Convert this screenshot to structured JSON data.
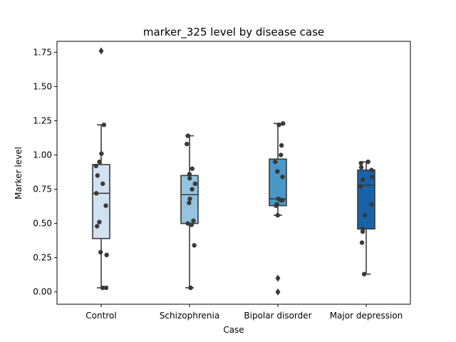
{
  "chart_data": {
    "type": "box",
    "title": "marker_325 level by disease case",
    "xlabel": "Case",
    "ylabel": "Marker level",
    "categories": [
      "Control",
      "Schizophrenia",
      "Bipolar disorder",
      "Major depression"
    ],
    "ylim": [
      -0.09,
      1.83
    ],
    "yticks": [
      0.0,
      0.25,
      0.5,
      0.75,
      1.0,
      1.25,
      1.5,
      1.75
    ],
    "ytick_labels": [
      "0.00",
      "0.25",
      "0.50",
      "0.75",
      "1.00",
      "1.25",
      "1.50",
      "1.75"
    ],
    "colors": {
      "boxes": [
        "#d0e1f2",
        "#94c4df",
        "#4a98c9",
        "#1764ab"
      ],
      "lines": "#3a3a3a",
      "points": "#3a3a3a"
    },
    "boxes": [
      {
        "q1": 0.39,
        "median": 0.72,
        "q3": 0.93,
        "whisker_low": 0.03,
        "whisker_high": 1.22,
        "outliers": [
          1.76
        ]
      },
      {
        "q1": 0.5,
        "median": 0.71,
        "q3": 0.85,
        "whisker_low": 0.03,
        "whisker_high": 1.14,
        "outliers": []
      },
      {
        "q1": 0.63,
        "median": 0.68,
        "q3": 0.97,
        "whisker_low": 0.56,
        "whisker_high": 1.23,
        "outliers": [
          0.1,
          0.0
        ]
      },
      {
        "q1": 0.46,
        "median": 0.78,
        "q3": 0.89,
        "whisker_low": 0.13,
        "whisker_high": 0.95,
        "outliers": []
      }
    ],
    "points": [
      [
        1.22,
        1.01,
        0.95,
        0.92,
        0.85,
        0.79,
        0.72,
        0.63,
        0.51,
        0.48,
        0.29,
        0.27,
        0.03,
        0.03
      ],
      [
        1.14,
        1.08,
        0.9,
        0.86,
        0.83,
        0.79,
        0.75,
        0.68,
        0.65,
        0.52,
        0.5,
        0.49,
        0.34,
        0.03
      ],
      [
        1.23,
        1.22,
        1.07,
        1.0,
        0.95,
        0.88,
        0.84,
        0.68,
        0.67,
        0.67,
        0.64,
        0.63,
        0.56
      ],
      [
        0.95,
        0.94,
        0.91,
        0.89,
        0.84,
        0.82,
        0.77,
        0.64,
        0.56,
        0.46,
        0.44,
        0.36,
        0.13
      ]
    ]
  }
}
